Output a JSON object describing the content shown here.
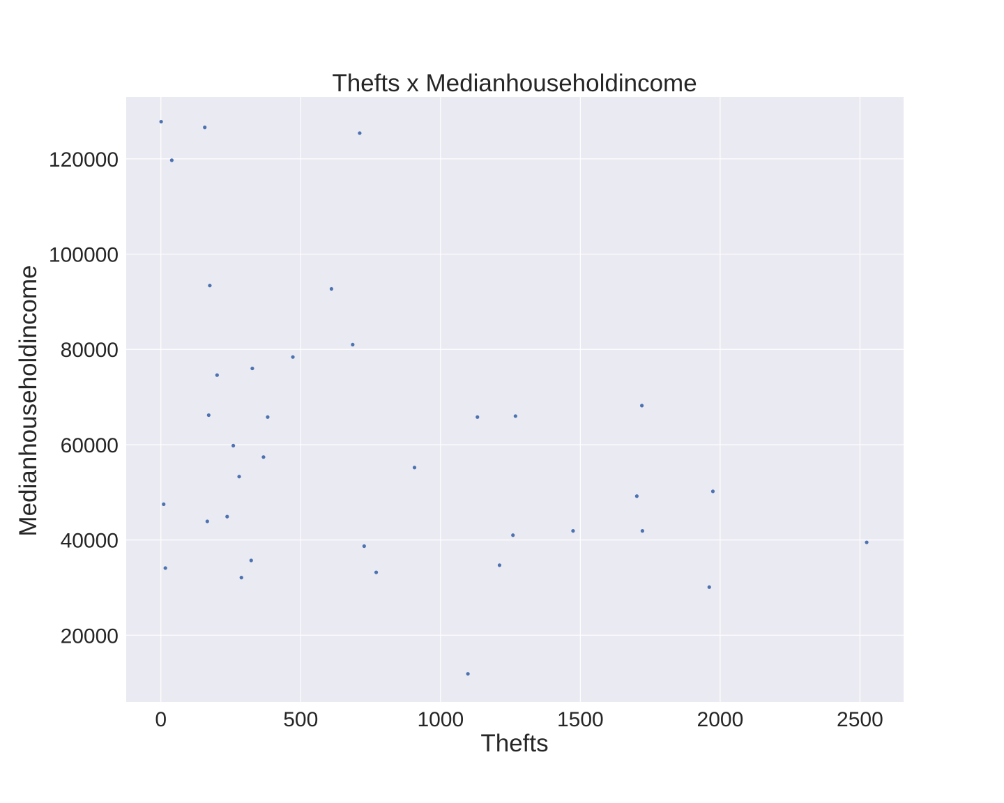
{
  "chart_data": {
    "type": "scatter",
    "title": "Thefts x Medianhouseholdincome",
    "xlabel": "Thefts",
    "ylabel": "Medianhouseholdincome",
    "xlim": [
      -124,
      2656
    ],
    "ylim": [
      6000,
      133000
    ],
    "xticks": [
      0,
      500,
      1000,
      1500,
      2000,
      2500
    ],
    "yticks": [
      20000,
      40000,
      60000,
      80000,
      100000,
      120000
    ],
    "xtick_labels": [
      "0",
      "500",
      "1000",
      "1500",
      "2000",
      "2500"
    ],
    "ytick_labels": [
      "20000",
      "40000",
      "60000",
      "80000",
      "100000",
      "120000"
    ],
    "grid": true,
    "point_color": "#4c72b0",
    "background_color": "#eaeaf2",
    "series": [
      {
        "points": [
          {
            "x": 1,
            "y": 127800
          },
          {
            "x": 157,
            "y": 126600
          },
          {
            "x": 711,
            "y": 125400
          },
          {
            "x": 39,
            "y": 119700
          },
          {
            "x": 175,
            "y": 93400
          },
          {
            "x": 610,
            "y": 92700
          },
          {
            "x": 686,
            "y": 81000
          },
          {
            "x": 472,
            "y": 78400
          },
          {
            "x": 327,
            "y": 76000
          },
          {
            "x": 201,
            "y": 74600
          },
          {
            "x": 171,
            "y": 66200
          },
          {
            "x": 382,
            "y": 65800
          },
          {
            "x": 1132,
            "y": 65800
          },
          {
            "x": 1268,
            "y": 66000
          },
          {
            "x": 1720,
            "y": 68200
          },
          {
            "x": 259,
            "y": 59800
          },
          {
            "x": 367,
            "y": 57400
          },
          {
            "x": 907,
            "y": 55200
          },
          {
            "x": 280,
            "y": 53300
          },
          {
            "x": 1702,
            "y": 49200
          },
          {
            "x": 1974,
            "y": 50200
          },
          {
            "x": 10,
            "y": 47500
          },
          {
            "x": 237,
            "y": 44900
          },
          {
            "x": 166,
            "y": 43900
          },
          {
            "x": 1474,
            "y": 41900
          },
          {
            "x": 1722,
            "y": 41900
          },
          {
            "x": 1259,
            "y": 41000
          },
          {
            "x": 727,
            "y": 38700
          },
          {
            "x": 2524,
            "y": 39500
          },
          {
            "x": 323,
            "y": 35700
          },
          {
            "x": 1211,
            "y": 34700
          },
          {
            "x": 16,
            "y": 34100
          },
          {
            "x": 770,
            "y": 33200
          },
          {
            "x": 288,
            "y": 32100
          },
          {
            "x": 1961,
            "y": 30100
          },
          {
            "x": 1098,
            "y": 11900
          }
        ]
      }
    ]
  }
}
